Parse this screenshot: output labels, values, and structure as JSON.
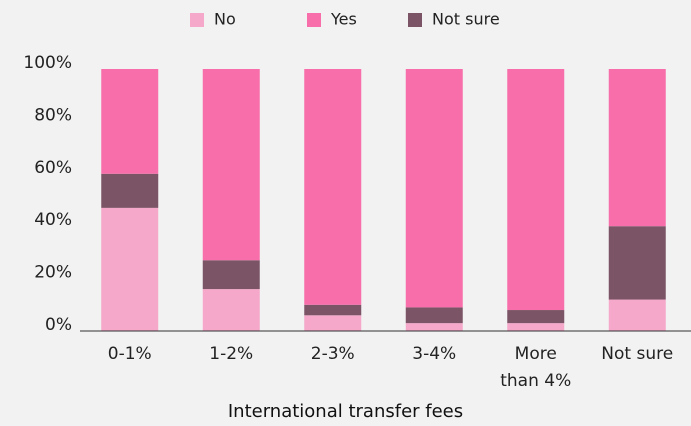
{
  "chart_data": {
    "type": "stacked_bar",
    "x_label": "International transfer fees",
    "categories": [
      "0-1%",
      "1-2%",
      "2-3%",
      "3-4%",
      "More than 4%",
      "Not sure"
    ],
    "series": [
      {
        "name": "No",
        "color": "#f5a8c9",
        "values": [
          47,
          16,
          6,
          3,
          3,
          12
        ]
      },
      {
        "name": "Yes",
        "color": "#f76eaa",
        "values": [
          40,
          73,
          90,
          91,
          92,
          60
        ]
      },
      {
        "name": "Not sure",
        "color": "#7b5466",
        "values": [
          13,
          11,
          4,
          6,
          5,
          28
        ]
      }
    ],
    "ylim": [
      0,
      100
    ],
    "yticks": [
      {
        "value": 0,
        "label": "0%"
      },
      {
        "value": 20,
        "label": "20%"
      },
      {
        "value": 40,
        "label": "40%"
      },
      {
        "value": 60,
        "label": "60%"
      },
      {
        "value": 80,
        "label": "80%"
      },
      {
        "value": 100,
        "label": "100%"
      }
    ],
    "legend": "top"
  }
}
